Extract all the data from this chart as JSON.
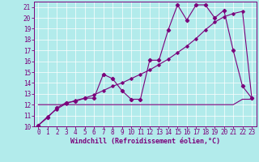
{
  "xlabel": "Windchill (Refroidissement éolien,°C)",
  "bg_color": "#b2ebeb",
  "line_color": "#7b007b",
  "grid_color": "#ffffff",
  "xlim": [
    -0.5,
    23.5
  ],
  "ylim": [
    10,
    21.5
  ],
  "xticks": [
    0,
    1,
    2,
    3,
    4,
    5,
    6,
    7,
    8,
    9,
    10,
    11,
    12,
    13,
    14,
    15,
    16,
    17,
    18,
    19,
    20,
    21,
    22,
    23
  ],
  "yticks": [
    10,
    11,
    12,
    13,
    14,
    15,
    16,
    17,
    18,
    19,
    20,
    21
  ],
  "jagged_x": [
    0,
    1,
    2,
    3,
    4,
    5,
    6,
    7,
    8,
    9,
    10,
    11,
    12,
    13,
    14,
    15,
    16,
    17,
    18,
    19,
    20,
    21,
    22,
    23
  ],
  "jagged_y": [
    10.1,
    10.8,
    11.7,
    12.2,
    12.3,
    12.6,
    12.6,
    14.8,
    14.4,
    13.3,
    12.5,
    12.5,
    16.1,
    16.1,
    18.9,
    21.2,
    19.8,
    21.2,
    21.2,
    20.0,
    20.7,
    17.0,
    13.7,
    12.6
  ],
  "diagonal_x": [
    0,
    1,
    2,
    3,
    4,
    5,
    6,
    7,
    8,
    9,
    10,
    11,
    12,
    13,
    14,
    15,
    16,
    17,
    18,
    19,
    20,
    21,
    22,
    23
  ],
  "diagonal_y": [
    10.1,
    10.9,
    11.6,
    12.1,
    12.4,
    12.6,
    12.9,
    13.3,
    13.7,
    14.0,
    14.4,
    14.8,
    15.2,
    15.7,
    16.2,
    16.8,
    17.4,
    18.1,
    18.9,
    19.6,
    20.1,
    20.4,
    20.6,
    12.6
  ],
  "flat_x": [
    0,
    9,
    10,
    11,
    14,
    15,
    21,
    22,
    23
  ],
  "flat_y": [
    12.0,
    12.0,
    12.0,
    12.0,
    12.0,
    12.0,
    12.0,
    12.5,
    12.5
  ],
  "xlabel_fontsize": 6.0,
  "tick_fontsize": 5.5
}
